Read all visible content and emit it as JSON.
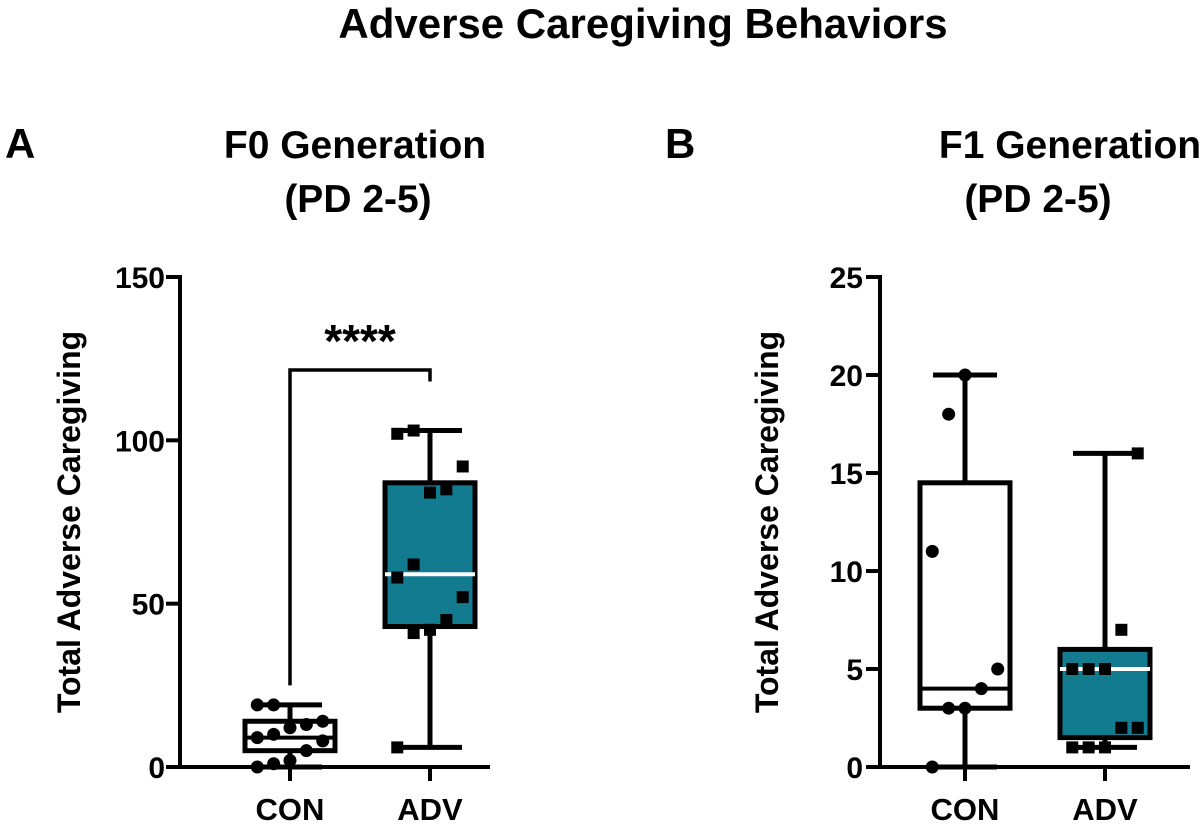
{
  "figure_title": "Adverse Caregiving Behaviors",
  "colors": {
    "adv_fill": "#137b8f",
    "con_fill": "#ffffff",
    "stroke": "#000000"
  },
  "chart_data": [
    {
      "type": "box",
      "panel_label": "A",
      "title_line1": "F0 Generation",
      "title_line2": "(PD 2-5)",
      "ylabel": "Total Adverse Caregiving",
      "ylim": [
        0,
        150
      ],
      "yticks": [
        0,
        50,
        100,
        150
      ],
      "categories": [
        "CON",
        "ADV"
      ],
      "significance": {
        "from": 0,
        "to": 1,
        "label": "****"
      },
      "boxes": [
        {
          "name": "CON",
          "min": 0,
          "q1": 5,
          "median": 9,
          "q3": 14,
          "max": 19,
          "points": [
            0,
            1,
            2,
            5,
            8,
            9,
            10,
            12,
            13,
            14,
            19,
            19
          ],
          "marker": "circle"
        },
        {
          "name": "ADV",
          "min": 6,
          "q1": 43,
          "median": 59,
          "q3": 87,
          "max": 103,
          "points": [
            6,
            41,
            42,
            45,
            52,
            58,
            62,
            84,
            85,
            92,
            102,
            103
          ],
          "marker": "square"
        }
      ]
    },
    {
      "type": "box",
      "panel_label": "B",
      "title_line1": "F1 Generation",
      "title_line2": "(PD 2-5)",
      "ylabel": "Total Adverse Caregiving",
      "ylim": [
        0,
        25
      ],
      "yticks": [
        0,
        5,
        10,
        15,
        20,
        25
      ],
      "categories": [
        "CON",
        "ADV"
      ],
      "boxes": [
        {
          "name": "CON",
          "min": 0,
          "q1": 3,
          "median": 4,
          "q3": 14.5,
          "max": 20,
          "points": [
            0,
            3,
            3,
            4,
            5,
            11,
            18,
            20
          ],
          "marker": "circle"
        },
        {
          "name": "ADV",
          "min": 1,
          "q1": 1.5,
          "median": 5,
          "q3": 6,
          "max": 16,
          "points": [
            1,
            1,
            1,
            2,
            2,
            5,
            5,
            5,
            7,
            16
          ],
          "marker": "square"
        }
      ]
    }
  ]
}
